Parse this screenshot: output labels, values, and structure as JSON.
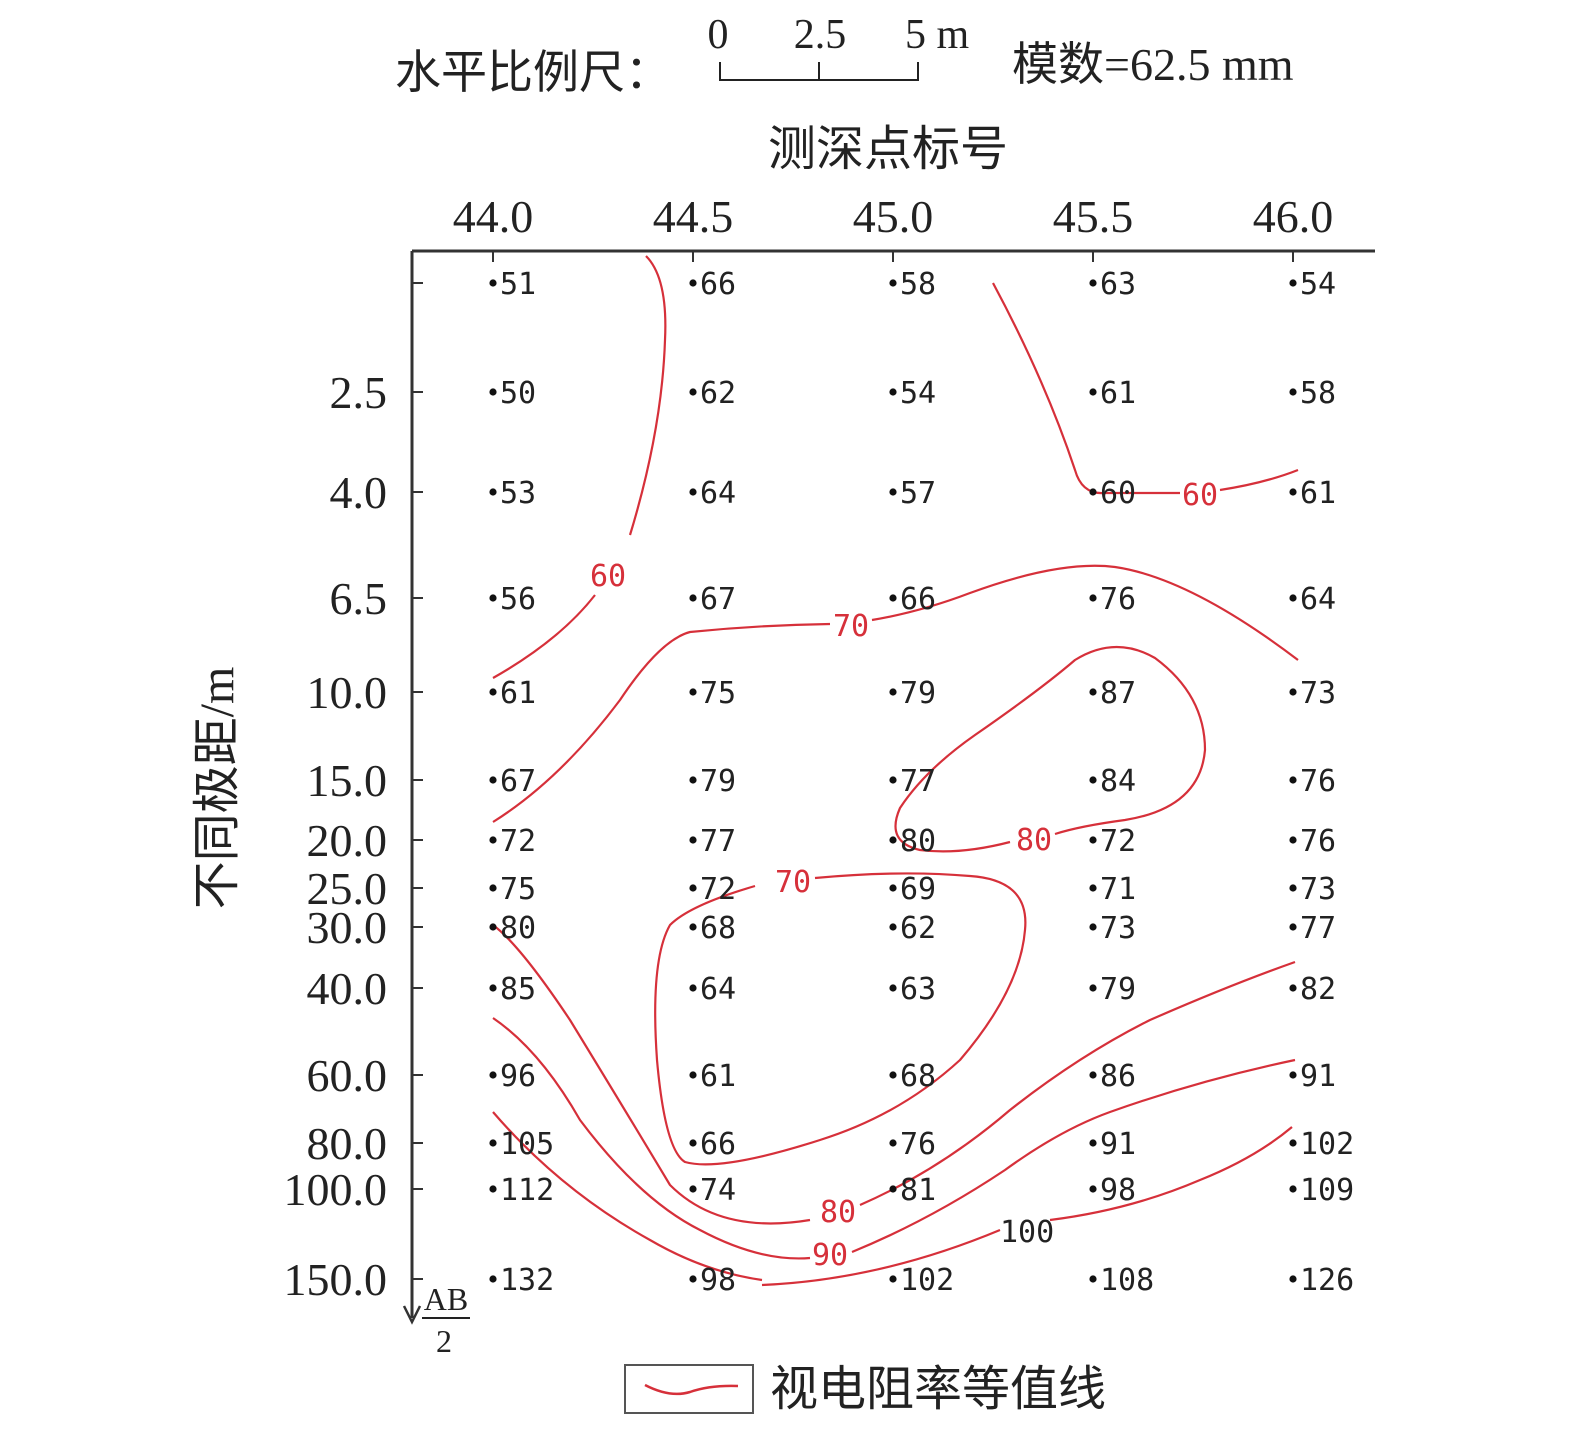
{
  "scale_bar": {
    "label": "水平比例尺：",
    "ticks": [
      "0",
      "2.5",
      "5 m"
    ],
    "modulus": "模数=62.5 mm"
  },
  "x_axis": {
    "title": "测深点标号",
    "ticks": [
      "44.0",
      "44.5",
      "45.0",
      "45.5",
      "46.0"
    ]
  },
  "y_axis": {
    "title": "不同极距/m",
    "ticks": [
      "2.5",
      "4.0",
      "6.5",
      "10.0",
      "15.0",
      "20.0",
      "25.0",
      "30.0",
      "40.0",
      "60.0",
      "80.0",
      "100.0",
      "150.0"
    ],
    "end_label_top": "AB",
    "end_label_bottom": "2"
  },
  "legend": {
    "label": "视电阻率等值线",
    "color": "#d6303a"
  },
  "chart_data": {
    "type": "heatmap",
    "title": "",
    "xlabel": "测深点标号",
    "ylabel": "不同极距/m",
    "x": [
      44.0,
      44.5,
      45.0,
      45.5,
      46.0
    ],
    "y": [
      "",
      "2.5",
      "4.0",
      "6.5",
      "10.0",
      "15.0",
      "20.0",
      "25.0",
      "30.0",
      "40.0",
      "60.0",
      "80.0",
      "100.0",
      "150.0"
    ],
    "values": [
      [
        51,
        66,
        58,
        63,
        54
      ],
      [
        50,
        62,
        54,
        61,
        58
      ],
      [
        53,
        64,
        57,
        60,
        61
      ],
      [
        56,
        67,
        66,
        76,
        64
      ],
      [
        61,
        75,
        79,
        87,
        73
      ],
      [
        67,
        79,
        77,
        84,
        76
      ],
      [
        72,
        77,
        80,
        72,
        76
      ],
      [
        75,
        72,
        69,
        71,
        73
      ],
      [
        80,
        68,
        62,
        73,
        77
      ],
      [
        85,
        64,
        63,
        79,
        82
      ],
      [
        96,
        61,
        68,
        86,
        91
      ],
      [
        105,
        66,
        76,
        91,
        102
      ],
      [
        112,
        74,
        81,
        98,
        109
      ],
      [
        132,
        98,
        102,
        108,
        126
      ]
    ],
    "contour_labels": [
      "60",
      "60",
      "70",
      "80",
      "70",
      "80",
      "90",
      "100"
    ],
    "contour_color": "#d6303a"
  }
}
